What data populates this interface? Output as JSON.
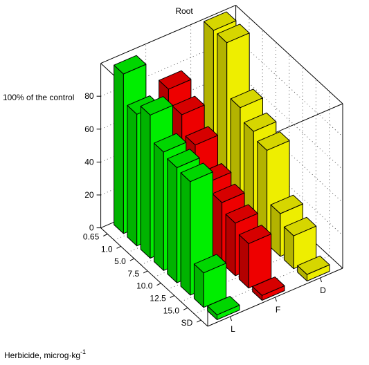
{
  "chart_data": {
    "type": "bar3d",
    "title": "Root",
    "xlabel": "Herbicide, microg·kg",
    "xlabel_superscript": "-1",
    "zlabel_top": "100% of the control",
    "z_ticks": [
      "0",
      "20",
      "40",
      "60",
      "80"
    ],
    "zlim": [
      0,
      100
    ],
    "dose_categories": [
      "0.65",
      "1.0",
      "5.0",
      "7.5",
      "10.0",
      "12.5",
      "15.0",
      "SD"
    ],
    "series_categories": [
      "L",
      "F",
      "D"
    ],
    "series": [
      {
        "name": "L",
        "color": "#00ee00",
        "values": [
          97,
          80,
          87,
          72,
          70,
          69,
          21,
          3
        ]
      },
      {
        "name": "F",
        "color": "#ee0000",
        "values": [
          76,
          68,
          57,
          42,
          37,
          32,
          27,
          3
        ]
      },
      {
        "name": "D",
        "color": "#eeee00",
        "values": [
          100,
          100,
          68,
          61,
          57,
          26,
          20,
          4
        ]
      }
    ],
    "grid": true
  }
}
